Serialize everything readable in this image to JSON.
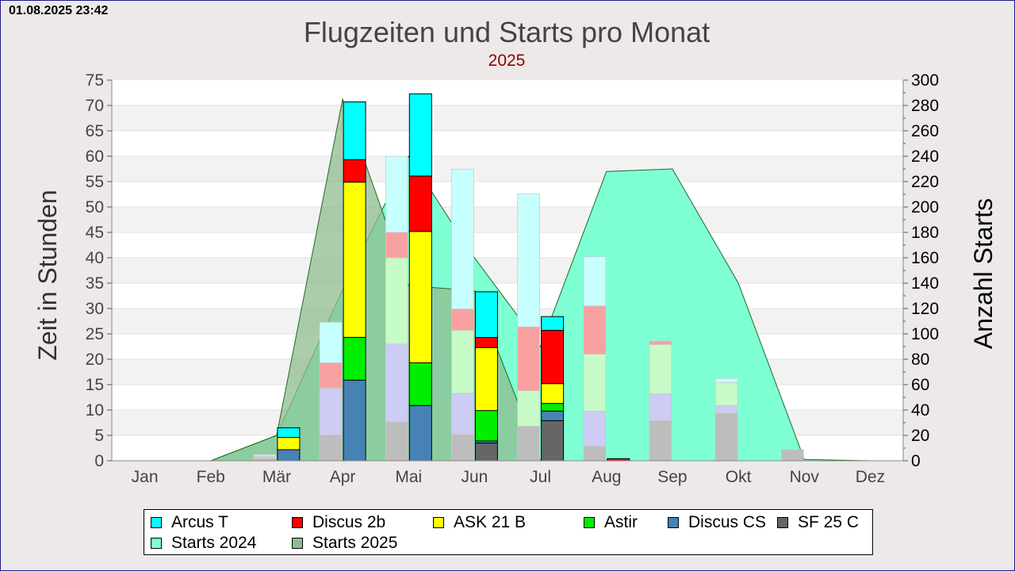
{
  "timestamp": "01.08.2025 23:42",
  "chart_data": {
    "type": "bar",
    "title": "Flugzeiten und Starts pro Monat",
    "subtitle": "2025",
    "ylabel": "Zeit in Stunden",
    "y2label": "Anzahl Starts",
    "ylim": [
      0,
      75
    ],
    "y2lim": [
      0,
      300
    ],
    "yticks": [
      "0",
      "5",
      "10",
      "15",
      "20",
      "25",
      "30",
      "35",
      "40",
      "45",
      "50",
      "55",
      "60",
      "65",
      "70",
      "75"
    ],
    "y2ticks": [
      "0",
      "20",
      "40",
      "60",
      "80",
      "100",
      "120",
      "140",
      "160",
      "180",
      "200",
      "220",
      "240",
      "260",
      "280",
      "300"
    ],
    "categories": [
      "Jan",
      "Feb",
      "Mär",
      "Apr",
      "Mai",
      "Jun",
      "Jul",
      "Aug",
      "Sep",
      "Okt",
      "Nov",
      "Dez"
    ],
    "grid": true,
    "legend_position": "bottom",
    "colors": {
      "Arcus T": "#00ffff",
      "Discus 2b": "#ff0000",
      "ASK 21 B": "#ffff00",
      "Astir": "#00ee00",
      "Discus CS": "#4682b4",
      "SF 25 C": "#666666",
      "Starts 2024": "#7fffd4",
      "Starts 2025": "#8fbc8f"
    },
    "stack_order": [
      "SF 25 C",
      "Discus CS",
      "Astir",
      "ASK 21 B",
      "Discus 2b",
      "Arcus T"
    ],
    "series_2025": [
      {
        "name": "Arcus T",
        "values": [
          0,
          0,
          1.9,
          11.4,
          16.2,
          9.0,
          2.7,
          0,
          0,
          0,
          0,
          0
        ]
      },
      {
        "name": "Discus 2b",
        "values": [
          0,
          0,
          0,
          4.4,
          10.9,
          2.0,
          10.5,
          0.4,
          0,
          0,
          0,
          0
        ]
      },
      {
        "name": "ASK 21 B",
        "values": [
          0,
          0,
          2.4,
          30.6,
          25.9,
          12.4,
          3.9,
          0,
          0,
          0,
          0,
          0
        ]
      },
      {
        "name": "Astir",
        "values": [
          0,
          0,
          0,
          8.4,
          8.4,
          6.0,
          1.5,
          0,
          0,
          0,
          0,
          0
        ]
      },
      {
        "name": "Discus CS",
        "values": [
          0,
          0,
          2.2,
          15.9,
          10.9,
          0.4,
          1.9,
          0,
          0,
          0,
          0,
          0
        ]
      },
      {
        "name": "SF 25 C",
        "values": [
          0,
          0,
          0,
          0,
          0,
          3.5,
          7.9,
          0,
          0,
          0,
          0,
          0
        ]
      }
    ],
    "series_2024": [
      {
        "name": "Arcus T",
        "values": [
          0,
          0,
          0,
          8.0,
          15.0,
          27.5,
          26.2,
          9.7,
          0,
          0.8,
          0,
          0
        ]
      },
      {
        "name": "Discus 2b",
        "values": [
          0,
          0,
          0,
          5.0,
          5.0,
          4.2,
          12.6,
          9.5,
          0.7,
          0,
          0,
          0
        ]
      },
      {
        "name": "ASK 21 B",
        "values": [
          0,
          0,
          0,
          0,
          0,
          0,
          0,
          0,
          0,
          0,
          0,
          0
        ]
      },
      {
        "name": "Astir",
        "values": [
          0,
          0,
          0.3,
          0,
          17.0,
          12.4,
          7.0,
          11.2,
          9.7,
          4.5,
          0,
          0
        ]
      },
      {
        "name": "Discus CS",
        "values": [
          0,
          0,
          0.4,
          9.2,
          15.3,
          8.1,
          0,
          6.9,
          5.3,
          1.5,
          0,
          0
        ]
      },
      {
        "name": "SF 25 C",
        "values": [
          0,
          0,
          0.5,
          5.1,
          7.7,
          5.2,
          6.8,
          2.9,
          7.9,
          9.4,
          2.2,
          0
        ]
      }
    ],
    "starts": [
      {
        "name": "Starts 2024",
        "values": [
          0,
          0,
          20,
          135,
          240,
          160,
          90,
          228,
          230,
          140,
          1,
          0
        ]
      },
      {
        "name": "Starts 2025",
        "values": [
          0,
          0,
          20,
          285,
          138,
          134,
          0,
          0,
          0,
          0,
          0,
          0
        ]
      }
    ]
  },
  "legend": [
    {
      "label": "Arcus T",
      "color": "#00ffff"
    },
    {
      "label": "Discus 2b",
      "color": "#ff0000"
    },
    {
      "label": "ASK 21 B",
      "color": "#ffff00"
    },
    {
      "label": "Astir",
      "color": "#00ee00"
    },
    {
      "label": "Discus CS",
      "color": "#4682b4"
    },
    {
      "label": "SF 25 C",
      "color": "#666666"
    },
    {
      "label": "Starts 2024",
      "color": "#7fffd4"
    },
    {
      "label": "Starts 2025",
      "color": "#8fbc8f"
    }
  ]
}
